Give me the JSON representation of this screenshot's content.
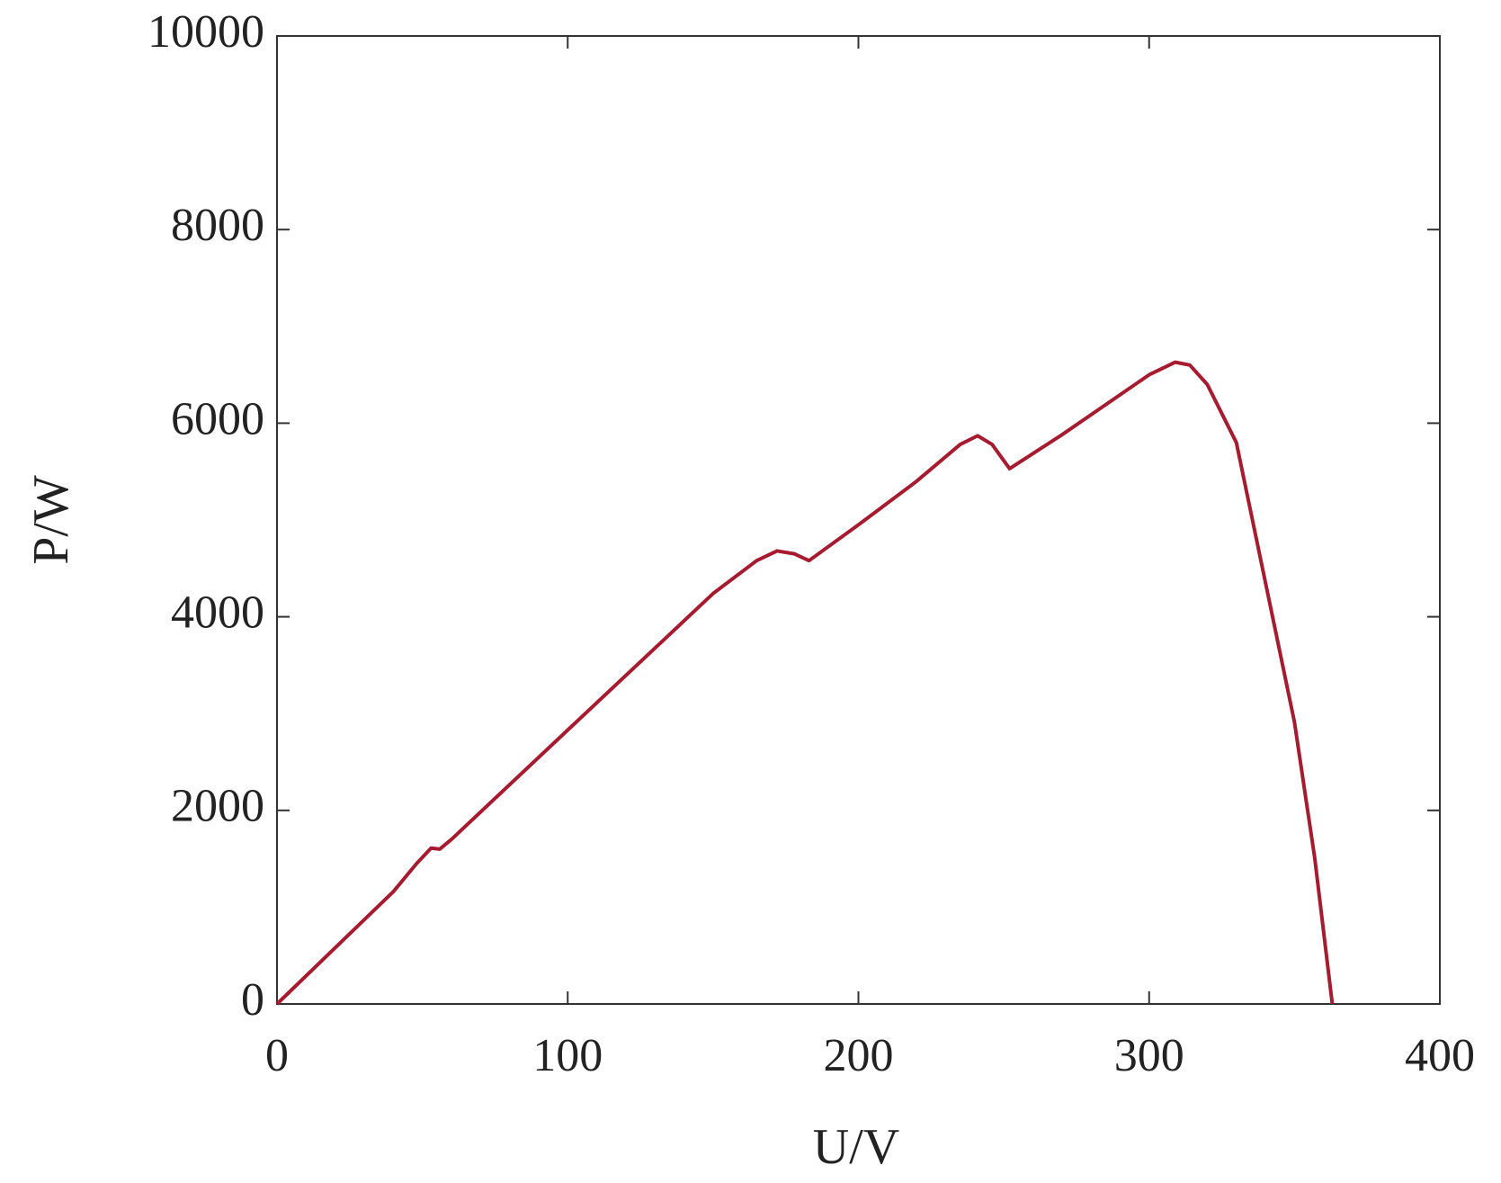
{
  "chart_data": {
    "type": "line",
    "x_label": "U/V",
    "y_label": "P/W",
    "xlim": [
      0,
      400
    ],
    "xticks": [
      0,
      100,
      200,
      300,
      400
    ],
    "ylim": [
      0,
      10000
    ],
    "yticks": [
      0,
      2000,
      4000,
      6000,
      8000,
      10000
    ],
    "grid": false,
    "series": [
      {
        "color": "#a51c30",
        "x": [
          0,
          20,
          40,
          48,
          53,
          56,
          60,
          100,
          150,
          165,
          172,
          178,
          183,
          200,
          220,
          235,
          241,
          246,
          252,
          270,
          300,
          309,
          314,
          320,
          330,
          339,
          350,
          357,
          363
        ],
        "values": [
          0,
          580,
          1160,
          1450,
          1610,
          1600,
          1700,
          2830,
          4240,
          4580,
          4680,
          4650,
          4580,
          4950,
          5400,
          5780,
          5870,
          5780,
          5530,
          5880,
          6500,
          6630,
          6600,
          6400,
          5800,
          4500,
          2910,
          1500,
          0
        ]
      }
    ]
  }
}
